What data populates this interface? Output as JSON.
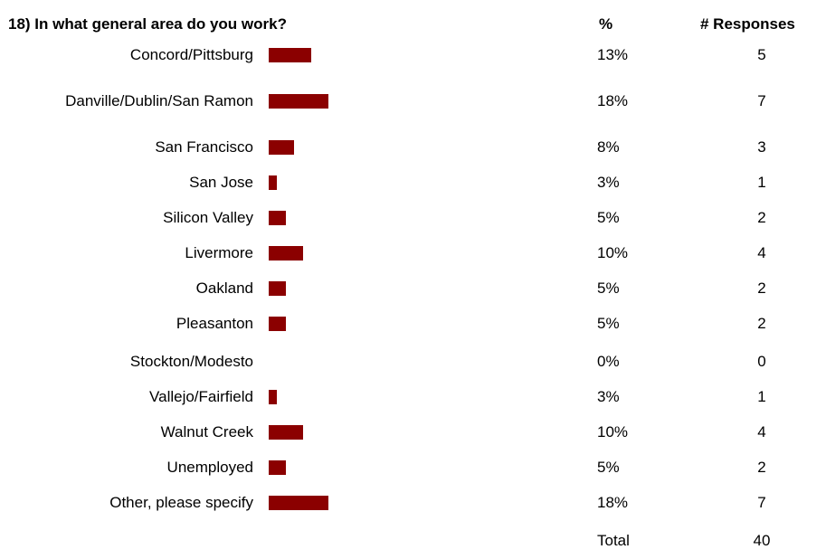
{
  "header": {
    "title": "18) In what general area do you work?",
    "percent_col": "%",
    "responses_col": "# Responses"
  },
  "colors": {
    "bar": "#8B0000"
  },
  "chart_data": {
    "type": "bar",
    "orientation": "horizontal",
    "title": "18) In what general area do you work?",
    "categories": [
      "Concord/Pittsburg",
      "Danville/Dublin/San Ramon",
      "San Francisco",
      "San Jose",
      "Silicon Valley",
      "Livermore",
      "Oakland",
      "Pleasanton",
      "Stockton/Modesto",
      "Vallejo/Fairfield",
      "Walnut Creek",
      "Unemployed",
      "Other, please specify"
    ],
    "percent_labels": [
      "13%",
      "18%",
      "8%",
      "3%",
      "5%",
      "10%",
      "5%",
      "5%",
      "0%",
      "3%",
      "10%",
      "5%",
      "18%"
    ],
    "values": [
      5,
      7,
      3,
      1,
      2,
      4,
      2,
      2,
      0,
      1,
      4,
      2,
      7
    ],
    "total_label": "Total",
    "total": 40
  }
}
